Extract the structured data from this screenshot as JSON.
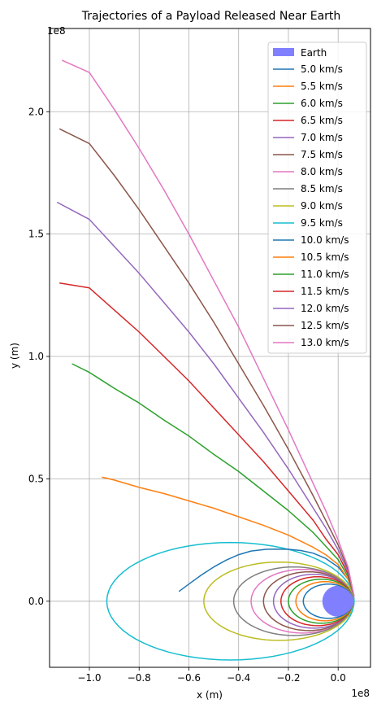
{
  "chart_data": {
    "type": "line",
    "title": "Trajectories of a Payload Released Near Earth",
    "xlabel": "x (m)",
    "ylabel": "y (m)",
    "x_multiplier": "1e8",
    "y_multiplier": "1e8",
    "xlim": [
      -1.16,
      0.13
    ],
    "ylim": [
      -0.27,
      2.34
    ],
    "x_ticks": [
      -1.0,
      -0.8,
      -0.6,
      -0.4,
      -0.2,
      0.0
    ],
    "x_tick_labels": [
      "−1.0",
      "−0.8",
      "−0.6",
      "−0.4",
      "−0.2",
      "0.0"
    ],
    "y_ticks": [
      0.0,
      0.5,
      1.0,
      1.5,
      2.0
    ],
    "y_tick_labels": [
      "0.0",
      "0.5",
      "1.0",
      "1.5",
      "2.0"
    ],
    "grid": true,
    "legend_position": "top-right",
    "earth": {
      "label": "Earth",
      "center": [
        0.0,
        0.0
      ],
      "radius": 0.0637,
      "color": "#8080ff"
    },
    "series": [
      {
        "name": "5.0 km/s",
        "color": "#1f77b4",
        "kind": "ellipse",
        "x_min": -0.14,
        "y_extent": 0.07
      },
      {
        "name": "5.5 km/s",
        "color": "#ff7f0e",
        "kind": "ellipse",
        "x_min": -0.17,
        "y_extent": 0.08
      },
      {
        "name": "6.0 km/s",
        "color": "#2ca02c",
        "kind": "ellipse",
        "x_min": -0.2,
        "y_extent": 0.09
      },
      {
        "name": "6.5 km/s",
        "color": "#d62728",
        "kind": "ellipse",
        "x_min": -0.23,
        "y_extent": 0.1
      },
      {
        "name": "7.0 km/s",
        "color": "#9467bd",
        "kind": "ellipse",
        "x_min": -0.26,
        "y_extent": 0.11
      },
      {
        "name": "7.5 km/s",
        "color": "#8c564b",
        "kind": "ellipse",
        "x_min": -0.3,
        "y_extent": 0.12
      },
      {
        "name": "8.0 km/s",
        "color": "#e377c2",
        "kind": "ellipse",
        "x_min": -0.35,
        "y_extent": 0.13
      },
      {
        "name": "8.5 km/s",
        "color": "#7f7f7f",
        "kind": "ellipse",
        "x_min": -0.42,
        "y_extent": 0.14
      },
      {
        "name": "9.0 km/s",
        "color": "#bcbd22",
        "kind": "ellipse",
        "x_min": -0.54,
        "y_extent": 0.16
      },
      {
        "name": "9.5 km/s",
        "color": "#17becf",
        "kind": "ellipse",
        "x_min": -0.93,
        "y_extent": 0.24
      },
      {
        "name": "10.0 km/s",
        "color": "#1f77b4",
        "kind": "path",
        "points": [
          [
            0.064,
            0.02
          ],
          [
            0.04,
            0.09
          ],
          [
            0.0,
            0.14
          ],
          [
            -0.05,
            0.175
          ],
          [
            -0.1,
            0.196
          ],
          [
            -0.15,
            0.207
          ],
          [
            -0.2,
            0.212
          ],
          [
            -0.25,
            0.213
          ],
          [
            -0.29,
            0.212
          ],
          [
            -0.35,
            0.205
          ],
          [
            -0.4,
            0.19
          ],
          [
            -0.45,
            0.168
          ],
          [
            -0.5,
            0.14
          ],
          [
            -0.55,
            0.107
          ],
          [
            -0.6,
            0.07
          ],
          [
            -0.64,
            0.04
          ]
        ]
      },
      {
        "name": "10.5 km/s",
        "color": "#ff7f0e",
        "kind": "path",
        "points": [
          [
            0.064,
            0.02
          ],
          [
            0.04,
            0.09
          ],
          [
            0.0,
            0.15
          ],
          [
            -0.05,
            0.19
          ],
          [
            -0.1,
            0.22
          ],
          [
            -0.15,
            0.245
          ],
          [
            -0.2,
            0.27
          ],
          [
            -0.3,
            0.31
          ],
          [
            -0.4,
            0.345
          ],
          [
            -0.5,
            0.38
          ],
          [
            -0.6,
            0.41
          ],
          [
            -0.7,
            0.44
          ],
          [
            -0.8,
            0.465
          ],
          [
            -0.9,
            0.495
          ],
          [
            -0.95,
            0.507
          ]
        ]
      },
      {
        "name": "11.0 km/s",
        "color": "#2ca02c",
        "kind": "path",
        "points": [
          [
            0.064,
            0.02
          ],
          [
            0.04,
            0.1
          ],
          [
            0.0,
            0.17
          ],
          [
            -0.05,
            0.225
          ],
          [
            -0.1,
            0.28
          ],
          [
            -0.2,
            0.37
          ],
          [
            -0.3,
            0.45
          ],
          [
            -0.4,
            0.53
          ],
          [
            -0.5,
            0.6
          ],
          [
            -0.6,
            0.675
          ],
          [
            -0.7,
            0.74
          ],
          [
            -0.8,
            0.81
          ],
          [
            -0.9,
            0.87
          ],
          [
            -1.0,
            0.935
          ],
          [
            -1.07,
            0.97
          ]
        ]
      },
      {
        "name": "11.5 km/s",
        "color": "#d62728",
        "kind": "path",
        "points": [
          [
            0.064,
            0.02
          ],
          [
            0.04,
            0.11
          ],
          [
            0.0,
            0.19
          ],
          [
            -0.05,
            0.255
          ],
          [
            -0.1,
            0.33
          ],
          [
            -0.2,
            0.45
          ],
          [
            -0.3,
            0.57
          ],
          [
            -0.4,
            0.68
          ],
          [
            -0.5,
            0.79
          ],
          [
            -0.6,
            0.9
          ],
          [
            -0.7,
            1.0
          ],
          [
            -0.8,
            1.1
          ],
          [
            -0.9,
            1.19
          ],
          [
            -1.0,
            1.28
          ],
          [
            -1.12,
            1.3
          ]
        ]
      },
      {
        "name": "12.0 km/s",
        "color": "#9467bd",
        "kind": "path",
        "points": [
          [
            0.064,
            0.02
          ],
          [
            0.04,
            0.12
          ],
          [
            0.0,
            0.21
          ],
          [
            -0.05,
            0.3
          ],
          [
            -0.1,
            0.38
          ],
          [
            -0.2,
            0.54
          ],
          [
            -0.3,
            0.69
          ],
          [
            -0.4,
            0.83
          ],
          [
            -0.5,
            0.97
          ],
          [
            -0.6,
            1.1
          ],
          [
            -0.7,
            1.22
          ],
          [
            -0.8,
            1.34
          ],
          [
            -0.9,
            1.45
          ],
          [
            -1.0,
            1.56
          ],
          [
            -1.13,
            1.63
          ]
        ]
      },
      {
        "name": "12.5 km/s",
        "color": "#8c564b",
        "kind": "path",
        "points": [
          [
            0.064,
            0.02
          ],
          [
            0.04,
            0.13
          ],
          [
            0.0,
            0.23
          ],
          [
            -0.05,
            0.33
          ],
          [
            -0.1,
            0.43
          ],
          [
            -0.2,
            0.62
          ],
          [
            -0.3,
            0.8
          ],
          [
            -0.4,
            0.97
          ],
          [
            -0.5,
            1.14
          ],
          [
            -0.6,
            1.3
          ],
          [
            -0.7,
            1.45
          ],
          [
            -0.8,
            1.6
          ],
          [
            -0.9,
            1.74
          ],
          [
            -1.0,
            1.87
          ],
          [
            -1.12,
            1.93
          ]
        ]
      },
      {
        "name": "13.0 km/s",
        "color": "#e377c2",
        "kind": "path",
        "points": [
          [
            0.064,
            0.02
          ],
          [
            0.04,
            0.14
          ],
          [
            0.0,
            0.25
          ],
          [
            -0.05,
            0.37
          ],
          [
            -0.1,
            0.48
          ],
          [
            -0.2,
            0.7
          ],
          [
            -0.3,
            0.91
          ],
          [
            -0.4,
            1.12
          ],
          [
            -0.5,
            1.31
          ],
          [
            -0.6,
            1.5
          ],
          [
            -0.7,
            1.68
          ],
          [
            -0.8,
            1.85
          ],
          [
            -0.9,
            2.01
          ],
          [
            -1.0,
            2.16
          ],
          [
            -1.11,
            2.21
          ]
        ]
      }
    ]
  }
}
